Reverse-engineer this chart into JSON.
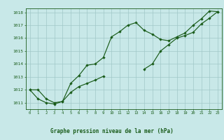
{
  "title": "Graphe pression niveau de la mer (hPa)",
  "hours": [
    0,
    1,
    2,
    3,
    4,
    5,
    6,
    7,
    8,
    9,
    10,
    11,
    12,
    13,
    14,
    15,
    16,
    17,
    18,
    19,
    20,
    21,
    22,
    23
  ],
  "line1_y": [
    1012.0,
    1012.0,
    1011.3,
    1011.0,
    1011.1,
    1012.5,
    1013.1,
    1013.9,
    1014.0,
    1014.5,
    1016.1,
    1016.5,
    1017.0,
    1017.2,
    1016.6,
    1016.3,
    1015.9,
    1015.8,
    1016.1,
    1016.4,
    1017.0,
    1017.5,
    1018.1,
    1018.05
  ],
  "line2a_x": [
    0,
    1,
    2,
    3,
    4,
    5,
    6,
    7,
    8,
    9
  ],
  "line2a_y": [
    1012.0,
    1011.3,
    1011.0,
    1010.9,
    1011.1,
    1011.8,
    1012.25,
    1012.5,
    1012.75,
    1013.05
  ],
  "line2b_x": [
    14,
    15,
    16,
    17,
    18,
    19,
    20,
    21,
    22,
    23
  ],
  "line2b_y": [
    1013.6,
    1014.0,
    1015.0,
    1015.5,
    1016.0,
    1016.2,
    1016.45,
    1017.1,
    1017.55,
    1018.05
  ],
  "ylim": [
    1010.5,
    1018.3
  ],
  "yticks": [
    1011,
    1012,
    1013,
    1014,
    1015,
    1016,
    1017,
    1018
  ],
  "line_color": "#1a5c1a",
  "bg_color": "#c8e8e8",
  "grid_color": "#a0c8c8",
  "title_color": "#1a5c1a"
}
